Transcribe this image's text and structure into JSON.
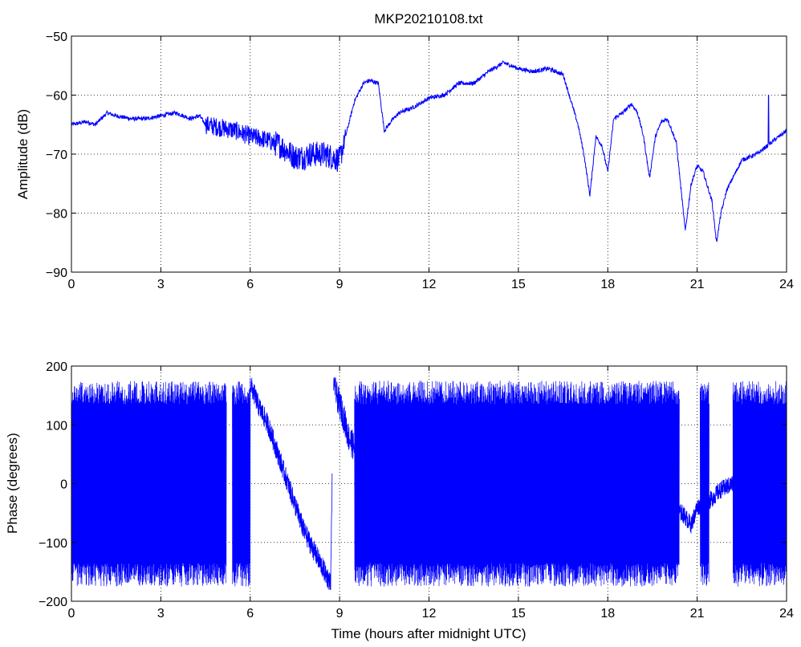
{
  "title": "MKP20210108.txt",
  "colors": {
    "series": "#0000ff",
    "axis": "#000000",
    "grid": "#000000",
    "background": "#ffffff"
  },
  "chart_data": [
    {
      "type": "line",
      "panel": "top",
      "title": "MKP20210108.txt",
      "xlabel": "",
      "ylabel": "Amplitude (dB)",
      "xlim": [
        0,
        24
      ],
      "ylim": [
        -90,
        -50
      ],
      "xticks": [
        0,
        3,
        6,
        9,
        12,
        15,
        18,
        21,
        24
      ],
      "yticks": [
        -90,
        -80,
        -70,
        -60,
        -50
      ],
      "xtick_labels": [
        "0",
        "3",
        "6",
        "9",
        "12",
        "15",
        "18",
        "21",
        "24"
      ],
      "ytick_labels": [
        "−90",
        "−80",
        "−70",
        "−60",
        "−50"
      ],
      "grid": true,
      "series": [
        {
          "x": [
            0,
            0.5,
            0.8,
            1.2,
            1.5,
            2,
            2.5,
            3,
            3.5,
            4,
            4.3,
            4.5,
            5,
            5.5,
            6,
            6.5,
            7,
            7.5,
            7.8,
            8,
            8.5,
            9,
            9.2,
            9.5,
            9.8,
            10,
            10.3,
            10.5,
            10.8,
            11,
            11.5,
            12,
            12.5,
            13,
            13.5,
            14,
            14.5,
            15,
            15.5,
            16,
            16.5,
            17,
            17.2,
            17.4,
            17.6,
            17.8,
            18,
            18.2,
            18.5,
            18.8,
            19,
            19.2,
            19.4,
            19.6,
            19.8,
            20,
            20.3,
            20.6,
            20.8,
            21,
            21.2,
            21.5,
            21.65,
            21.8,
            22,
            22.5,
            23,
            23.5,
            24
          ],
          "y": [
            -65,
            -64.5,
            -65,
            -63,
            -63.5,
            -64,
            -64,
            -63.5,
            -63,
            -64,
            -63.5,
            -65,
            -65.5,
            -66,
            -67,
            -67.5,
            -68.5,
            -70.5,
            -70.5,
            -70,
            -70,
            -71,
            -67,
            -61,
            -58,
            -57.5,
            -58,
            -66,
            -64,
            -63,
            -62,
            -60.5,
            -60,
            -58,
            -58,
            -56,
            -54.5,
            -55.5,
            -56,
            -55.5,
            -56.5,
            -65,
            -70,
            -77,
            -67,
            -68.5,
            -73,
            -64,
            -63,
            -61.5,
            -63,
            -67,
            -74,
            -67,
            -64.5,
            -64,
            -68,
            -83,
            -75,
            -72,
            -73,
            -78,
            -85,
            -80,
            -76,
            -71,
            -70,
            -68,
            -66
          ]
        }
      ]
    },
    {
      "type": "line",
      "panel": "bottom",
      "title": "",
      "xlabel": "Time (hours after midnight UTC)",
      "ylabel": "Phase (degrees)",
      "xlim": [
        0,
        24
      ],
      "ylim": [
        -200,
        200
      ],
      "xticks": [
        0,
        3,
        6,
        9,
        12,
        15,
        18,
        21,
        24
      ],
      "yticks": [
        -200,
        -100,
        0,
        100,
        200
      ],
      "xtick_labels": [
        "0",
        "3",
        "6",
        "9",
        "12",
        "15",
        "18",
        "21",
        "24"
      ],
      "ytick_labels": [
        "−200",
        "−100",
        "0",
        "100",
        "200"
      ],
      "grid": true,
      "series": [
        {
          "wrapped_segments": [
            [
              0,
              5.2
            ],
            [
              5.4,
              6.0
            ],
            [
              9.5,
              20.4
            ],
            [
              21.1,
              21.4
            ],
            [
              22.2,
              24
            ]
          ],
          "x": [
            6.0,
            6.3,
            6.6,
            7.0,
            7.4,
            7.8,
            8.2,
            8.5,
            8.7,
            8.8,
            8.9,
            9.1,
            9.3,
            9.5,
            20.5,
            20.8,
            21.0,
            21.4,
            21.8,
            22.2
          ],
          "y": [
            170,
            130,
            100,
            40,
            -20,
            -80,
            -120,
            -150,
            -170,
            180,
            150,
            120,
            80,
            60,
            -50,
            -70,
            -40,
            -30,
            -10,
            0
          ]
        }
      ]
    }
  ]
}
